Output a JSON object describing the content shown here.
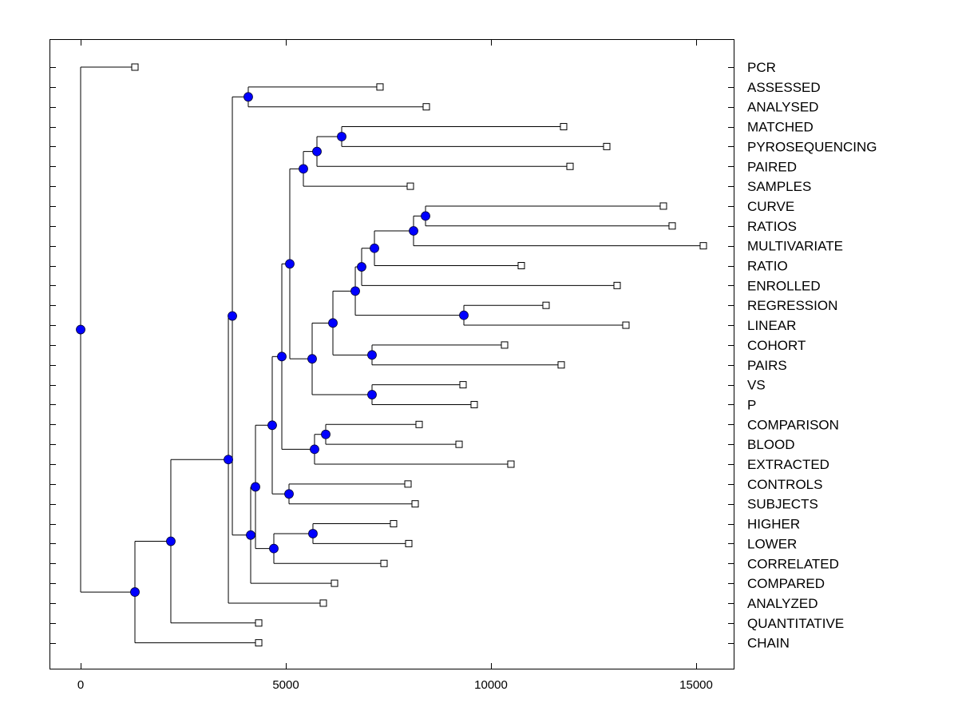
{
  "chart_data": {
    "type": "dendrogram",
    "title": "",
    "xlabel": "",
    "ylabel": "",
    "xlim": [
      -750,
      15950
    ],
    "xticks": [
      0,
      5000,
      10000,
      15000
    ],
    "xtick_labels": [
      "0",
      "5000",
      "10000",
      "15000"
    ],
    "grid": false,
    "node_color": "#0000ff",
    "leaf_color": "#ffffff",
    "line_color": "#000000",
    "leaves": [
      "PCR",
      "ASSESSED",
      "ANALYSED",
      "MATCHED",
      "PYROSEQUENCING",
      "PAIRED",
      "SAMPLES",
      "CURVE",
      "RATIOS",
      "MULTIVARIATE",
      "RATIO",
      "ENROLLED",
      "REGRESSION",
      "LINEAR",
      "COHORT",
      "PAIRS",
      "VS",
      "P",
      "COMPARISON",
      "BLOOD",
      "EXTRACTED",
      "CONTROLS",
      "SUBJECTS",
      "HIGHER",
      "LOWER",
      "CORRELATED",
      "COMPARED",
      "ANALYZED",
      "QUANTITATIVE",
      "CHAIN"
    ],
    "tree": {
      "x": 0,
      "children": [
        {
          "leaf": "PCR",
          "x": 1323
        },
        {
          "x": 1323,
          "children": [
            {
              "x": 2198,
              "children": [
                {
                  "x": 3600,
                  "children": [
                    {
                      "x": 3697,
                      "children": [
                        {
                          "x": 4085,
                          "children": [
                            {
                              "leaf": "ASSESSED",
                              "x": 7295
                            },
                            {
                              "leaf": "ANALYSED",
                              "x": 8424
                            }
                          ]
                        },
                        {
                          "x": 4144,
                          "children": [
                            {
                              "x": 4261,
                              "children": [
                                {
                                  "x": 4669,
                                  "children": [
                                    {
                                      "x": 4903,
                                      "children": [
                                        {
                                          "x": 5097,
                                          "children": [
                                            {
                                              "x": 5428,
                                              "children": [
                                                {
                                                  "x": 5759,
                                                  "children": [
                                                    {
                                                      "x": 6362,
                                                      "children": [
                                                        {
                                                          "leaf": "MATCHED",
                                                          "x": 11770
                                                        },
                                                        {
                                                          "leaf": "PYROSEQUENCING",
                                                          "x": 12821
                                                        }
                                                      ]
                                                    },
                                                    {
                                                      "leaf": "PAIRED",
                                                      "x": 11926
                                                    }
                                                  ]
                                                },
                                                {
                                                  "leaf": "SAMPLES",
                                                  "x": 8035
                                                }
                                              ]
                                            },
                                            {
                                              "x": 5642,
                                              "children": [
                                                {
                                                  "x": 6148,
                                                  "children": [
                                                    {
                                                      "x": 6693,
                                                      "children": [
                                                        {
                                                          "x": 6848,
                                                          "children": [
                                                            {
                                                              "x": 7160,
                                                              "children": [
                                                                {
                                                                  "x": 8113,
                                                                  "children": [
                                                                    {
                                                                      "x": 8405,
                                                                      "children": [
                                                                        {
                                                                          "leaf": "CURVE",
                                                                          "x": 14202
                                                                        },
                                                                        {
                                                                          "leaf": "RATIOS",
                                                                          "x": 14416
                                                                        }
                                                                      ]
                                                                    },
                                                                    {
                                                                      "leaf": "MULTIVARIATE",
                                                                      "x": 15175
                                                                    }
                                                                  ]
                                                                },
                                                                {
                                                                  "leaf": "RATIO",
                                                                  "x": 10739
                                                                }
                                                              ]
                                                            },
                                                            {
                                                              "leaf": "ENROLLED",
                                                              "x": 13074
                                                            }
                                                          ]
                                                        },
                                                        {
                                                          "x": 9339,
                                                          "children": [
                                                            {
                                                              "leaf": "REGRESSION",
                                                              "x": 11342
                                                            },
                                                            {
                                                              "leaf": "LINEAR",
                                                              "x": 13288
                                                            }
                                                          ]
                                                        }
                                                      ]
                                                    },
                                                    {
                                                      "x": 7101,
                                                      "children": [
                                                        {
                                                          "leaf": "COHORT",
                                                          "x": 10331
                                                        },
                                                        {
                                                          "leaf": "PAIRS",
                                                          "x": 11712
                                                        }
                                                      ]
                                                    }
                                                  ]
                                                },
                                                {
                                                  "x": 7101,
                                                  "children": [
                                                    {
                                                      "leaf": "VS",
                                                      "x": 9319
                                                    },
                                                    {
                                                      "leaf": "P",
                                                      "x": 9591
                                                    }
                                                  ]
                                                }
                                              ]
                                            }
                                          ]
                                        },
                                        {
                                          "x": 5700,
                                          "children": [
                                            {
                                              "x": 5973,
                                              "children": [
                                                {
                                                  "leaf": "COMPARISON",
                                                  "x": 8249
                                                },
                                                {
                                                  "leaf": "BLOOD",
                                                  "x": 9222
                                                }
                                              ]
                                            },
                                            {
                                              "leaf": "EXTRACTED",
                                              "x": 10486
                                            }
                                          ]
                                        }
                                      ]
                                    },
                                    {
                                      "x": 5078,
                                      "children": [
                                        {
                                          "leaf": "CONTROLS",
                                          "x": 7977
                                        },
                                        {
                                          "leaf": "SUBJECTS",
                                          "x": 8152
                                        }
                                      ]
                                    }
                                  ]
                                },
                                {
                                  "x": 4708,
                                  "children": [
                                    {
                                      "x": 5661,
                                      "children": [
                                        {
                                          "leaf": "HIGHER",
                                          "x": 7626
                                        },
                                        {
                                          "leaf": "LOWER",
                                          "x": 7996
                                        }
                                      ]
                                    },
                                    {
                                      "leaf": "CORRELATED",
                                      "x": 7393
                                    }
                                  ]
                                }
                              ]
                            },
                            {
                              "leaf": "COMPARED",
                              "x": 6187
                            }
                          ]
                        }
                      ]
                    },
                    {
                      "leaf": "ANALYZED",
                      "x": 5914
                    }
                  ]
                },
                {
                  "leaf": "QUANTITATIVE",
                  "x": 4339
                }
              ]
            },
            {
              "leaf": "CHAIN",
              "x": 4339
            }
          ]
        }
      ]
    }
  }
}
